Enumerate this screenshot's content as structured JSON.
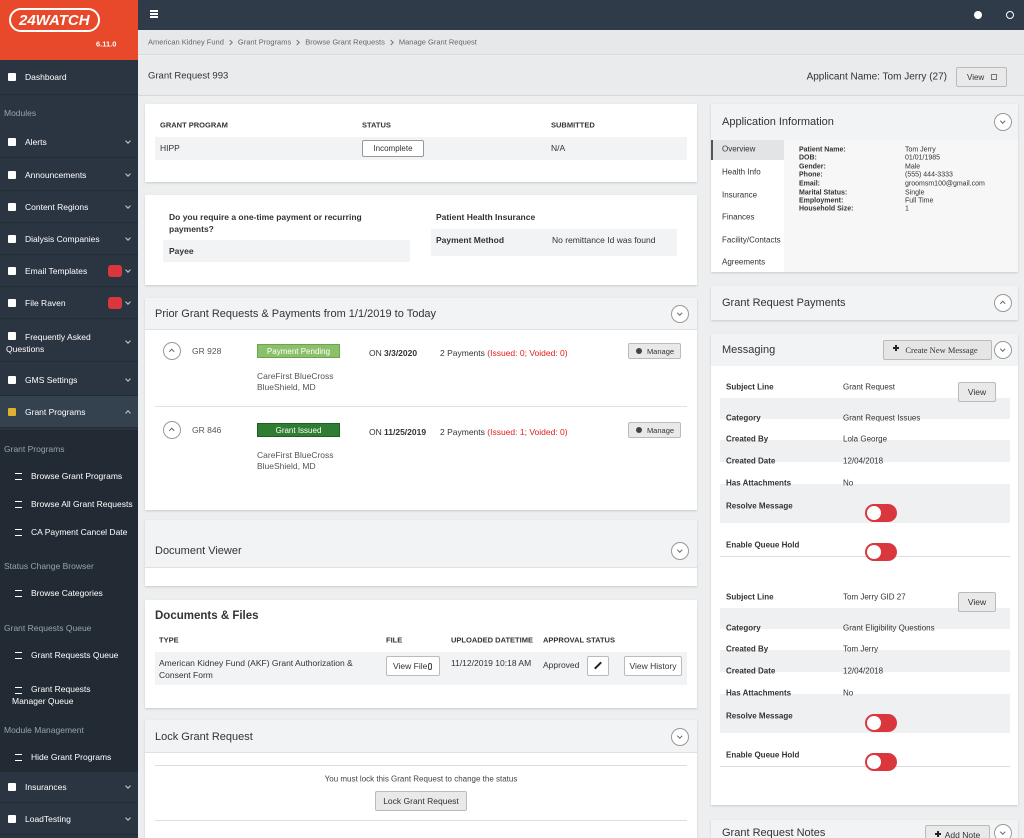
{
  "app": {
    "logo": "24WATCH",
    "version": "6.11.0"
  },
  "sidebar": {
    "items": [
      "Dashboard",
      "Modules",
      "Alerts",
      "Announcements",
      "Content Regions",
      "Dialysis Companies",
      "Email Templates",
      "File Raven",
      "Frequently Asked Questions",
      "GMS Settings",
      "Grant Programs",
      "Grant Programs",
      "Browse Grant Programs",
      "Browse All Grant Requests",
      "CA Payment Cancel Date",
      "Status Change Browser",
      "Browse Categories",
      "Grant Requests Queue",
      "Grant Requests Queue",
      "Grant Requests Manager Queue",
      "Module Management",
      "Hide Grant Programs",
      "Insurances",
      "LoadTesting"
    ]
  },
  "breadcrumb": [
    "American Kidney Fund",
    "Grant Programs",
    "Browse Grant Requests",
    "Manage Grant Request"
  ],
  "header": {
    "title": "Grant Request 993",
    "applicant": "Applicant Name: Tom Jerry (27)",
    "view": "View"
  },
  "summary": {
    "columns": [
      "GRANT PROGRAM",
      "STATUS",
      "SUBMITTED"
    ],
    "row": [
      "HIPP",
      "Incomplete",
      "N/A"
    ]
  },
  "payment": {
    "question": "Do you require a one-time payment or recurring payments?",
    "payee": "Payee",
    "insurance": "Patient Health Insurance",
    "method_label": "Payment Method",
    "method_value": "No remittance Id was found"
  },
  "prior": {
    "title": "Prior Grant Requests & Payments from 1/1/2019 to Today",
    "on": "ON",
    "manage": "Manage",
    "requests": [
      {
        "id": "GR 928",
        "status": "Payment Pending",
        "date": "3/3/2020",
        "payments": "2 Payments",
        "detail": "(Issued: 0; Voided: 0)",
        "insurer": "CareFirst BlueCross BlueShield, MD"
      },
      {
        "id": "GR 846",
        "status": "Grant Issued",
        "date": "11/25/2019",
        "payments": "2 Payments",
        "detail": "(Issued: 1; Voided: 0)",
        "insurer": "CareFirst BlueCross BlueShield, MD"
      }
    ]
  },
  "document_viewer": {
    "title": "Document Viewer"
  },
  "documents": {
    "title": "Documents & Files",
    "columns": [
      "TYPE",
      "FILE",
      "UPLOADED DATETIME",
      "APPROVAL STATUS"
    ],
    "rows": [
      {
        "type": "American Kidney Fund (AKF) Grant Authorization & Consent Form",
        "file": "View File",
        "uploaded": "11/12/2019 10:18 AM",
        "approval": "Approved",
        "history": "View History"
      }
    ]
  },
  "lock": {
    "title": "Lock Grant Request",
    "message": "You must lock this Grant Request to change the status",
    "button": "Lock Grant Request"
  },
  "application": {
    "title": "Application Information",
    "tabs": [
      "Overview",
      "Health Info",
      "Insurance",
      "Finances",
      "Facility/Contacts",
      "Agreements"
    ],
    "fields": [
      [
        "Patient Name:",
        "Tom Jerry"
      ],
      [
        "DOB:",
        "01/01/1985"
      ],
      [
        "Gender:",
        "Male"
      ],
      [
        "Phone:",
        "(555) 444-3333"
      ],
      [
        "Email:",
        "groomsm100@gmail.com"
      ],
      [
        "Marital Status:",
        "Single"
      ],
      [
        "Employment:",
        "Full Time"
      ],
      [
        "Household Size:",
        "1"
      ]
    ]
  },
  "payments_panel": {
    "title": "Grant Request Payments"
  },
  "messaging": {
    "title": "Messaging",
    "create": "Create New Message",
    "view": "View",
    "labels": [
      "Subject Line",
      "Category",
      "Created By",
      "Created Date",
      "Has Attachments",
      "Resolve Message",
      "Enable Queue Hold"
    ],
    "messages": [
      [
        "Grant Request",
        "Grant Request Issues",
        "Lola George",
        "12/04/2018",
        "No"
      ],
      [
        "Tom Jerry GID 27",
        "Grant Eligibility Questions",
        "Tom Jerry",
        "12/04/2018",
        "No"
      ]
    ]
  },
  "notes": {
    "title": "Grant Request Notes",
    "add": "Add Note"
  }
}
